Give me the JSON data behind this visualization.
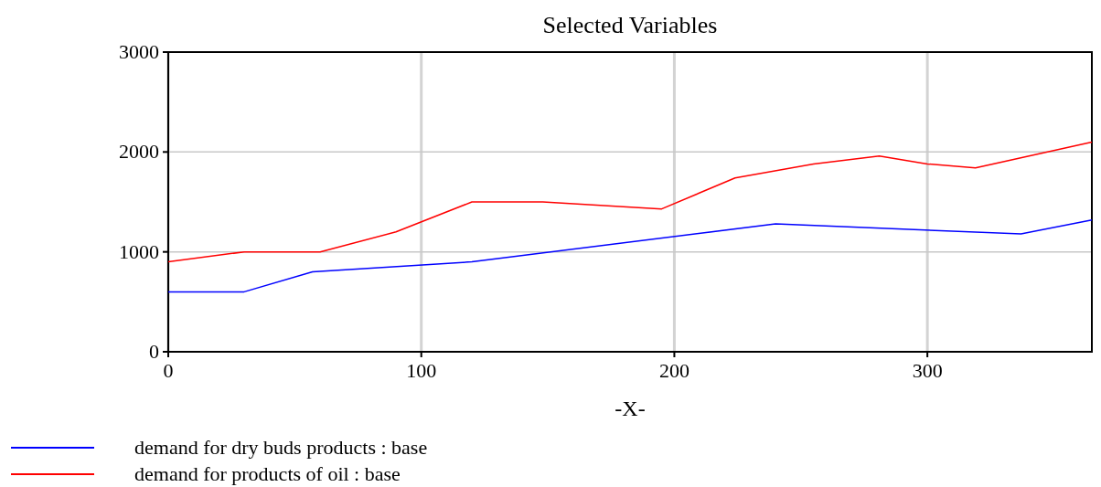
{
  "chart_data": {
    "type": "line",
    "title": "Selected Variables",
    "xlabel": "-X-",
    "xlim": [
      0,
      365
    ],
    "xticks": [
      0,
      100,
      200,
      300
    ],
    "ylim": [
      0,
      3000
    ],
    "yticks": [
      0,
      1000,
      2000,
      3000
    ],
    "grid": true,
    "legend": "bottom",
    "marker": "none",
    "line_style": "solid",
    "series": [
      {
        "name": "demand for dry buds products : base",
        "color": "#0000ff",
        "x": [
          0,
          30,
          57,
          120,
          240,
          337,
          365
        ],
        "values": [
          600,
          600,
          800,
          900,
          1280,
          1180,
          1320
        ]
      },
      {
        "name": "demand for products of oil : base",
        "color": "#ff0000",
        "x": [
          0,
          30,
          60,
          90,
          120,
          148,
          195,
          224,
          255,
          281,
          300,
          319,
          365
        ],
        "values": [
          900,
          1000,
          1000,
          1200,
          1500,
          1500,
          1430,
          1740,
          1880,
          1960,
          1880,
          1840,
          2100
        ]
      }
    ]
  }
}
